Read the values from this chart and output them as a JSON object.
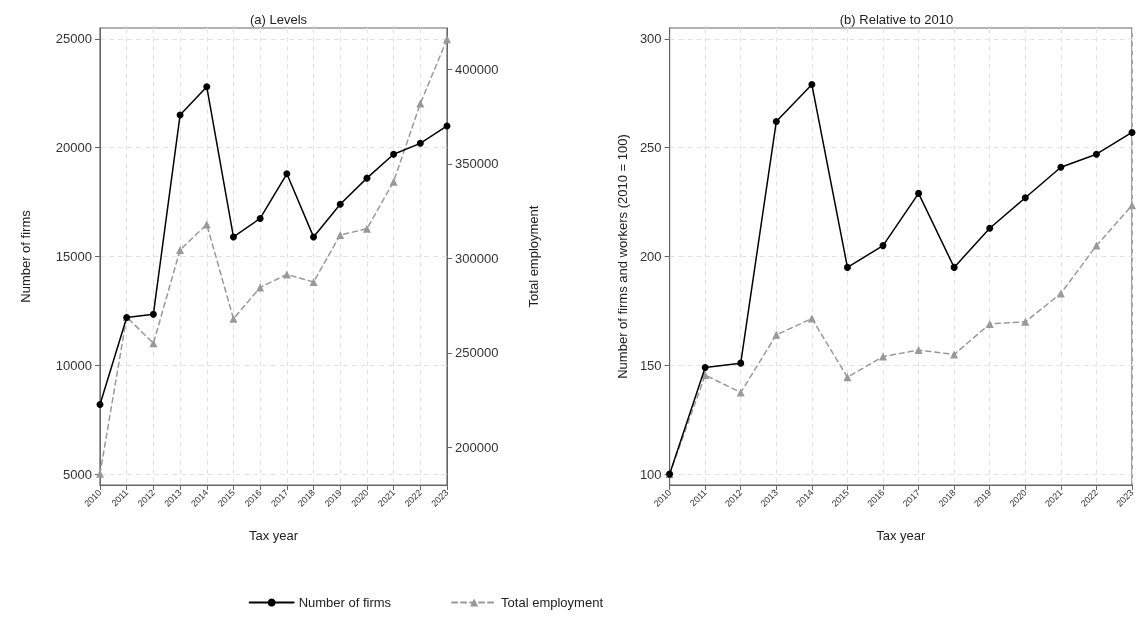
{
  "chart_data": [
    {
      "type": "line",
      "title": "(a) Levels",
      "xlabel": "Tax year",
      "ylabel": "Number of firms",
      "y2label": "Total employment",
      "categories": [
        "2010",
        "2011",
        "2012",
        "2013",
        "2014",
        "2015",
        "2016",
        "2017",
        "2018",
        "2019",
        "2020",
        "2021",
        "2022",
        "2023"
      ],
      "series": [
        {
          "name": "Number of firms",
          "color": "#000000",
          "marker": "circle",
          "line_style": "solid",
          "values": [
            8200,
            12200,
            12350,
            21500,
            22800,
            15900,
            16750,
            18800,
            15900,
            17400,
            18600,
            19700,
            20200,
            21000
          ]
        },
        {
          "name": "Total employment",
          "color": "#999999",
          "marker": "triangle",
          "line_style": "dashed",
          "axis": "y2",
          "values": [
            186000,
            269000,
            255000,
            304500,
            318000,
            268000,
            284600,
            291500,
            287500,
            312400,
            315700,
            340600,
            382000,
            416000
          ]
        }
      ],
      "ylim": [
        4500,
        25500
      ],
      "yticks": [
        5000,
        10000,
        15000,
        20000,
        25000
      ],
      "y2lim": [
        180000,
        422000
      ],
      "y2ticks": [
        200000,
        250000,
        300000,
        350000,
        400000
      ],
      "grid": true,
      "legend": "bottom"
    },
    {
      "type": "line",
      "title": "(b) Relative to 2010",
      "xlabel": "Tax year",
      "ylabel": "Number of firms and workers (2010 = 100)",
      "categories": [
        "2010",
        "2011",
        "2012",
        "2013",
        "2014",
        "2015",
        "2016",
        "2017",
        "2018",
        "2019",
        "2020",
        "2021",
        "2022",
        "2023"
      ],
      "series": [
        {
          "color": "#000000",
          "marker": "circle",
          "line_style": "solid",
          "values": [
            100,
            149,
            151,
            262,
            279,
            195,
            205,
            229,
            195,
            213,
            227,
            241,
            247,
            257
          ]
        },
        {
          "color": "#999999",
          "marker": "triangle",
          "line_style": "dashed",
          "values": [
            100,
            145.5,
            137.5,
            164,
            171.5,
            144.5,
            154,
            157,
            155,
            169,
            170,
            183,
            205,
            223.5
          ]
        }
      ],
      "ylim": [
        95,
        305
      ],
      "yticks": [
        100,
        150,
        200,
        250,
        300
      ],
      "grid": true
    }
  ]
}
